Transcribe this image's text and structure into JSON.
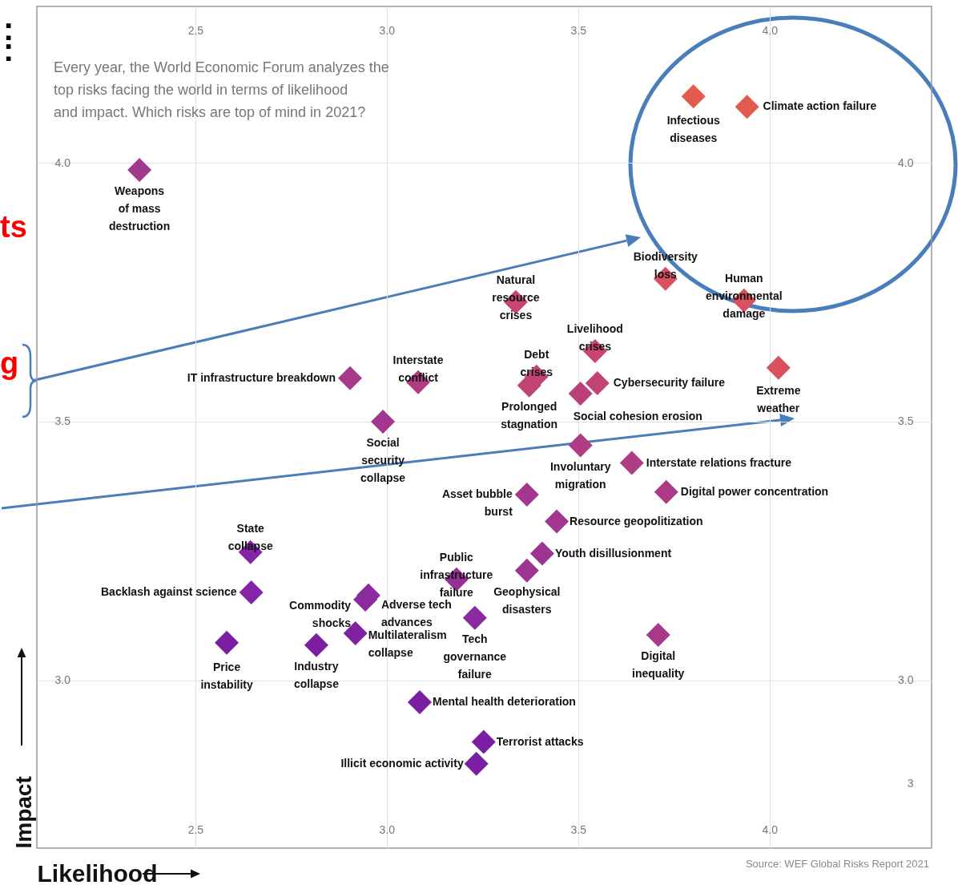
{
  "chart_data": {
    "type": "scatter",
    "marker": "diamond",
    "grid": true,
    "subtitle": "Every year, the World Economic Forum analyzes the top risks facing the world in terms of likelihood and impact. Which risks are top of mind in 2021?",
    "xlabel": "Likelihood",
    "ylabel": "Impact",
    "xlim": [
      2.086,
      4.423
    ],
    "xticks": [
      2.5,
      {
        "value": 3,
        "label": "3.0"
      },
      3.5,
      {
        "value": 4,
        "label": "4.0"
      }
    ],
    "x2lim": [
      2.086,
      4.423
    ],
    "x2ticks": [
      2.5,
      {
        "value": 3,
        "label": "3.0"
      },
      3.5,
      {
        "value": 4,
        "label": "4.0"
      }
    ],
    "ylim": [
      2.676,
      4.302
    ],
    "yticks": [
      {
        "value": 3,
        "label": "3.0"
      },
      3.5,
      {
        "value": 4,
        "label": "4.0"
      }
    ],
    "y2lim": [
      2.676,
      4.302
    ],
    "y2ticks": [
      {
        "value": 2.8,
        "label": "3"
      },
      {
        "value": 3,
        "label": "3.0"
      },
      3.5,
      {
        "value": 4,
        "label": "4.0"
      }
    ],
    "x": [
      2.354,
      3.801,
      3.941,
      3.728,
      3.933,
      3.337,
      3.544,
      4.023,
      3.391,
      3.372,
      3.55,
      3.506,
      2.904,
      3.082,
      2.99,
      3.506,
      3.64,
      3.73,
      3.366,
      3.444,
      3.406,
      3.366,
      3.182,
      2.644,
      2.646,
      2.944,
      2.952,
      3.23,
      2.918,
      2.582,
      2.816,
      3.709,
      3.086,
      3.253,
      3.234
    ],
    "values": [
      3.986,
      4.128,
      4.108,
      3.776,
      3.734,
      3.731,
      3.636,
      3.604,
      3.587,
      3.57,
      3.574,
      3.554,
      3.584,
      3.576,
      3.5,
      3.454,
      3.42,
      3.364,
      3.359,
      3.307,
      3.245,
      3.212,
      3.195,
      3.248,
      3.17,
      3.156,
      3.164,
      3.121,
      3.091,
      3.073,
      3.068,
      3.088,
      2.958,
      2.881,
      2.839
    ],
    "colors": [
      "#a13a8f",
      "#e35a4f",
      "#e35a4f",
      "#d9505e",
      "#d9505e",
      "#c94470",
      "#c94470",
      "#d9505e",
      "#c24476",
      "#c24476",
      "#c24476",
      "#bb4079",
      "#a8388a",
      "#b03c84",
      "#a3368f",
      "#b03c84",
      "#b03c84",
      "#ad3a88",
      "#a3368f",
      "#a3368f",
      "#9e3492",
      "#9e3492",
      "#982f96",
      "#8424a6",
      "#8424a6",
      "#8c2aa0",
      "#8c2aa0",
      "#8c2aa0",
      "#7e22a2",
      "#7a1fa2",
      "#7a1fa2",
      "#a8388a",
      "#7a1fa2",
      "#7a1fa2",
      "#7a1fa2"
    ],
    "annotations": [
      "Source: WEF Global Risks Report 2021",
      "ts",
      "g",
      ":",
      ":",
      {
        "text": "Weapons of mass destruction",
        "x": 2.354,
        "y": 3.986
      },
      {
        "text": "Infectious diseases",
        "x": 3.801,
        "y": 4.128
      },
      {
        "text": "Climate action failure",
        "x": 3.941,
        "y": 4.108
      },
      {
        "text": "Biodiversity loss",
        "x": 3.728,
        "y": 3.776
      },
      {
        "text": "Human environmental damage",
        "x": 3.933,
        "y": 3.734
      },
      {
        "text": "Natural resource crises",
        "x": 3.337,
        "y": 3.731
      },
      {
        "text": "Livelihood crises",
        "x": 3.544,
        "y": 3.636
      },
      {
        "text": "Extreme weather",
        "x": 4.023,
        "y": 3.604
      },
      {
        "text": "Debt crises",
        "x": 3.391,
        "y": 3.587
      },
      {
        "text": "Prolonged stagnation",
        "x": 3.372,
        "y": 3.57
      },
      {
        "text": "Cybersecurity failure",
        "x": 3.55,
        "y": 3.574
      },
      {
        "text": "Social cohesion erosion",
        "x": 3.506,
        "y": 3.554
      },
      {
        "text": "IT infrastructure breakdown",
        "x": 2.904,
        "y": 3.584
      },
      {
        "text": "Interstate conflict",
        "x": 3.082,
        "y": 3.576
      },
      {
        "text": "Social security collapse",
        "x": 2.99,
        "y": 3.5
      },
      {
        "text": "Involuntary migration",
        "x": 3.506,
        "y": 3.454
      },
      {
        "text": "Interstate relations fracture",
        "x": 3.64,
        "y": 3.42
      },
      {
        "text": "Digital power concentration",
        "x": 3.73,
        "y": 3.364
      },
      {
        "text": "Asset bubble burst",
        "x": 3.366,
        "y": 3.359
      },
      {
        "text": "Resource geopolitization",
        "x": 3.444,
        "y": 3.307
      },
      {
        "text": "Youth disillusionment",
        "x": 3.406,
        "y": 3.245
      },
      {
        "text": "Geophysical disasters",
        "x": 3.366,
        "y": 3.212
      },
      {
        "text": "Public infrastructure failure",
        "x": 3.182,
        "y": 3.195
      },
      {
        "text": "State collapse",
        "x": 2.644,
        "y": 3.248
      },
      {
        "text": "Backlash against science",
        "x": 2.646,
        "y": 3.17
      },
      {
        "text": "Commodity shocks",
        "x": 2.944,
        "y": 3.156
      },
      {
        "text": "Adverse tech advances",
        "x": 2.952,
        "y": 3.164
      },
      {
        "text": "Tech governance failure",
        "x": 3.23,
        "y": 3.121
      },
      {
        "text": "Multilateralism collapse",
        "x": 2.918,
        "y": 3.091
      },
      {
        "text": "Price instability",
        "x": 2.582,
        "y": 3.073
      },
      {
        "text": "Industry collapse",
        "x": 2.816,
        "y": 3.068
      },
      {
        "text": "Digital inequality",
        "x": 3.709,
        "y": 3.088
      },
      {
        "text": "Mental health deterioration",
        "x": 3.086,
        "y": 2.958
      },
      {
        "text": "Terrorist attacks",
        "x": 3.253,
        "y": 2.881
      },
      {
        "text": "Illicit economic activity",
        "x": 3.234,
        "y": 2.839
      }
    ]
  }
}
